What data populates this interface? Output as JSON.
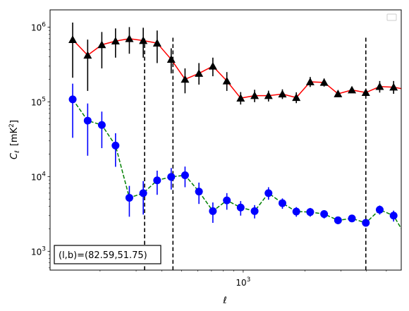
{
  "chart_data": {
    "type": "scatter",
    "xlabel": "ℓ",
    "ylabel_main": "C",
    "ylabel_sub": "ℓ",
    "ylabel_unit": "[mK",
    "ylabel_unit_sup": "2",
    "ylabel_unit_end": "]",
    "x_scale": "log",
    "y_scale": "log",
    "xlim": [
      114,
      5912
    ],
    "ylim": [
      560,
      1700000
    ],
    "x_ticks": [
      {
        "value": 1000,
        "base": "10",
        "exp": "3"
      }
    ],
    "y_ticks": [
      {
        "value": 1000,
        "base": "10",
        "exp": "3"
      },
      {
        "value": 10000,
        "base": "10",
        "exp": "4"
      },
      {
        "value": 100000,
        "base": "10",
        "exp": "5"
      },
      {
        "value": 1000000,
        "base": "10",
        "exp": "6"
      }
    ],
    "annotation": "(l,b)=(82.59,51.75)",
    "legend_placement": "top-right",
    "vlines": [
      {
        "x": 330,
        "y_top": 700000
      },
      {
        "x": 454,
        "y_top": 750000
      },
      {
        "x": 3970,
        "y_top": 750000
      }
    ],
    "colors": {
      "upper_line": "#ff0000",
      "upper_marker": "#000000",
      "lower_line": "#008000",
      "lower_marker": "#0000ff",
      "vline": "#000000"
    },
    "series": [
      {
        "marker": "triangle",
        "line_style": "solid",
        "points": [
          {
            "x": 147,
            "y": 680000,
            "lo": 210000,
            "hi": 1150000
          },
          {
            "x": 174,
            "y": 420000,
            "lo": 140000,
            "hi": 680000
          },
          {
            "x": 204,
            "y": 580000,
            "lo": 280000,
            "hi": 860000
          },
          {
            "x": 238,
            "y": 650000,
            "lo": 390000,
            "hi": 960000
          },
          {
            "x": 278,
            "y": 700000,
            "lo": 440000,
            "hi": 1000000
          },
          {
            "x": 325,
            "y": 660000,
            "lo": 390000,
            "hi": 980000
          },
          {
            "x": 380,
            "y": 610000,
            "lo": 330000,
            "hi": 900000
          },
          {
            "x": 445,
            "y": 370000,
            "lo": 240000,
            "hi": 520000
          },
          {
            "x": 520,
            "y": 200000,
            "lo": 130000,
            "hi": 280000
          },
          {
            "x": 608,
            "y": 240000,
            "lo": 170000,
            "hi": 330000
          },
          {
            "x": 711,
            "y": 300000,
            "lo": 220000,
            "hi": 390000
          },
          {
            "x": 832,
            "y": 190000,
            "lo": 140000,
            "hi": 250000
          },
          {
            "x": 972,
            "y": 112000,
            "lo": 92000,
            "hi": 135000
          },
          {
            "x": 1137,
            "y": 121000,
            "lo": 99000,
            "hi": 145000
          },
          {
            "x": 1329,
            "y": 121000,
            "lo": 101000,
            "hi": 141000
          },
          {
            "x": 1554,
            "y": 127000,
            "lo": 109000,
            "hi": 147000
          },
          {
            "x": 1817,
            "y": 114000,
            "lo": 96000,
            "hi": 134000
          },
          {
            "x": 2124,
            "y": 185000,
            "lo": 158000,
            "hi": 215000
          },
          {
            "x": 2484,
            "y": 182000,
            "lo": 160000,
            "hi": 205000
          },
          {
            "x": 2904,
            "y": 128000,
            "lo": 116000,
            "hi": 140000
          },
          {
            "x": 3395,
            "y": 144000,
            "lo": 131000,
            "hi": 158000
          },
          {
            "x": 3970,
            "y": 133000,
            "lo": 121000,
            "hi": 146000
          },
          {
            "x": 4641,
            "y": 160000,
            "lo": 133000,
            "hi": 190000
          },
          {
            "x": 5426,
            "y": 157000,
            "lo": 128000,
            "hi": 190000
          },
          {
            "x": 6345,
            "y": 145000,
            "lo": 80000,
            "hi": 200000
          }
        ]
      },
      {
        "marker": "circle",
        "line_style": "dashed",
        "points": [
          {
            "x": 147,
            "y": 108000,
            "lo": 33000,
            "hi": 175000
          },
          {
            "x": 174,
            "y": 56000,
            "lo": 19000,
            "hi": 95000
          },
          {
            "x": 204,
            "y": 49000,
            "lo": 24000,
            "hi": 74000
          },
          {
            "x": 238,
            "y": 26000,
            "lo": 13500,
            "hi": 38000
          },
          {
            "x": 278,
            "y": 5200,
            "lo": 2900,
            "hi": 7500
          },
          {
            "x": 325,
            "y": 6000,
            "lo": 3100,
            "hi": 8700
          },
          {
            "x": 380,
            "y": 8900,
            "lo": 5700,
            "hi": 12000
          },
          {
            "x": 445,
            "y": 9900,
            "lo": 6700,
            "hi": 13000
          },
          {
            "x": 520,
            "y": 10400,
            "lo": 7200,
            "hi": 13600
          },
          {
            "x": 608,
            "y": 6300,
            "lo": 4300,
            "hi": 8300
          },
          {
            "x": 711,
            "y": 3450,
            "lo": 2400,
            "hi": 4500
          },
          {
            "x": 832,
            "y": 4800,
            "lo": 3600,
            "hi": 6000
          },
          {
            "x": 972,
            "y": 3850,
            "lo": 3000,
            "hi": 4700
          },
          {
            "x": 1137,
            "y": 3450,
            "lo": 2750,
            "hi": 4150
          },
          {
            "x": 1329,
            "y": 6000,
            "lo": 4900,
            "hi": 7200
          },
          {
            "x": 1554,
            "y": 4400,
            "lo": 3700,
            "hi": 5100
          },
          {
            "x": 1817,
            "y": 3400,
            "lo": 2900,
            "hi": 3900
          },
          {
            "x": 2124,
            "y": 3350,
            "lo": 2900,
            "hi": 3800
          },
          {
            "x": 2484,
            "y": 3150,
            "lo": 2750,
            "hi": 3550
          },
          {
            "x": 2904,
            "y": 2600,
            "lo": 2300,
            "hi": 2900
          },
          {
            "x": 3395,
            "y": 2750,
            "lo": 2450,
            "hi": 3050
          },
          {
            "x": 3970,
            "y": 2400,
            "lo": 2150,
            "hi": 2650
          },
          {
            "x": 4641,
            "y": 3600,
            "lo": 3100,
            "hi": 4100
          },
          {
            "x": 5426,
            "y": 3000,
            "lo": 2500,
            "hi": 3500
          },
          {
            "x": 6345,
            "y": 1450,
            "lo": 920,
            "hi": 2000
          }
        ]
      }
    ]
  }
}
